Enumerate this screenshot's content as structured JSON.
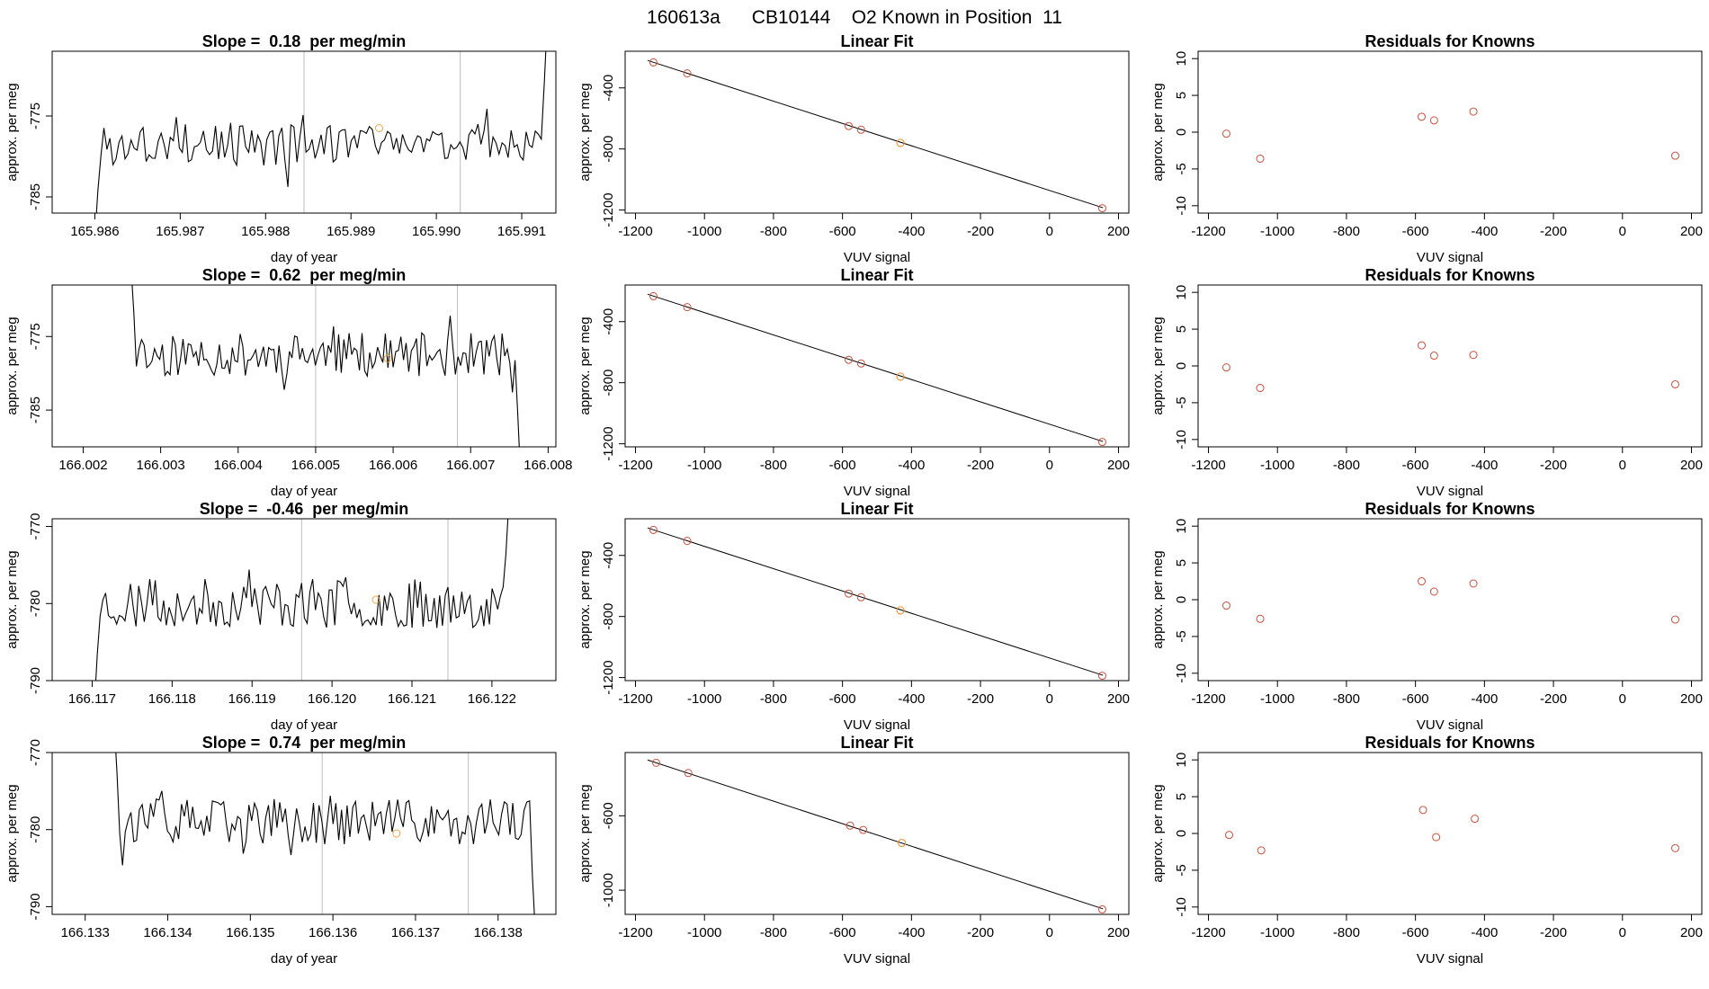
{
  "main_title": "160613a      CB10144    O2 Known in Position  11",
  "colors": {
    "line": "#000000",
    "point": "#cd4f39",
    "highlight": "#f4a442",
    "vline": "#bebebe",
    "frame": "#000000"
  },
  "chart_data": [
    {
      "type": "line",
      "title": "Slope =  0.18  per meg/min",
      "xlabel": "day of year",
      "ylabel": "approx. per meg",
      "xlim": [
        165.9855,
        165.9914
      ],
      "ylim": [
        -787,
        -767
      ],
      "x_ticks": [
        "165.986",
        "165.987",
        "165.988",
        "165.989",
        "165.990",
        "165.991"
      ],
      "y_ticks": [
        "-775",
        "-785"
      ],
      "x_start": 165.986,
      "x_end": 165.9913,
      "seed": 3,
      "base": -778.5,
      "amp": 2.7,
      "start_y": -790,
      "end_y": -763,
      "vlines": [
        165.98845,
        165.99028
      ],
      "marker": {
        "x": 165.98933,
        "y": -776.5
      }
    },
    {
      "type": "scatter",
      "title": "Linear Fit",
      "xlabel": "VUV signal",
      "ylabel": "approx. per meg",
      "xlim": [
        -1230,
        230
      ],
      "ylim": [
        -1220,
        -160
      ],
      "x_ticks": [
        -1200,
        -1000,
        -800,
        -600,
        -400,
        -200,
        0,
        200
      ],
      "y_ticks": [
        -400,
        -800,
        -1200
      ],
      "fit_line": {
        "x": [
          -1165,
          155
        ],
        "y": [
          -220,
          -1185
        ]
      },
      "points": [
        {
          "x": -1148,
          "y": -233
        },
        {
          "x": -1050,
          "y": -305
        },
        {
          "x": -582,
          "y": -650
        },
        {
          "x": -546,
          "y": -674
        },
        {
          "x": -432,
          "y": -760,
          "highlight": true
        },
        {
          "x": 153,
          "y": -1188
        }
      ]
    },
    {
      "type": "scatter",
      "title": "Residuals for Knowns",
      "xlabel": "VUV signal",
      "ylabel": "approx. per meg",
      "xlim": [
        -1230,
        230
      ],
      "ylim": [
        -11,
        11
      ],
      "x_ticks": [
        -1200,
        -1000,
        -800,
        -600,
        -400,
        -200,
        0,
        200
      ],
      "y_ticks": [
        10,
        5,
        0,
        -5,
        -10
      ],
      "points": [
        {
          "x": -1148,
          "y": -0.2
        },
        {
          "x": -1050,
          "y": -3.6
        },
        {
          "x": -582,
          "y": 2.1
        },
        {
          "x": -546,
          "y": 1.6
        },
        {
          "x": -432,
          "y": 2.8
        },
        {
          "x": 153,
          "y": -3.2
        }
      ]
    },
    {
      "type": "line",
      "title": "Slope =  0.62  per meg/min",
      "xlabel": "day of year",
      "ylabel": "approx. per meg",
      "xlim": [
        166.0016,
        166.0081
      ],
      "ylim": [
        -790,
        -768
      ],
      "x_ticks": [
        "166.002",
        "166.003",
        "166.004",
        "166.005",
        "166.006",
        "166.007",
        "166.008"
      ],
      "y_ticks": [
        "-775",
        "-785"
      ],
      "x_start": 166.00262,
      "x_end": 166.00764,
      "seed": 11,
      "base": -777.5,
      "amp": 3.0,
      "start_y": -766,
      "end_y": -793,
      "vlines": [
        166.005,
        166.00683
      ],
      "marker": {
        "x": 166.00593,
        "y": -778
      }
    },
    {
      "type": "scatter",
      "title": "Linear Fit",
      "xlabel": "VUV signal",
      "ylabel": "approx. per meg",
      "xlim": [
        -1230,
        230
      ],
      "ylim": [
        -1220,
        -160
      ],
      "x_ticks": [
        -1200,
        -1000,
        -800,
        -600,
        -400,
        -200,
        0,
        200
      ],
      "y_ticks": [
        -400,
        -800,
        -1200
      ],
      "fit_line": {
        "x": [
          -1165,
          155
        ],
        "y": [
          -220,
          -1185
        ]
      },
      "points": [
        {
          "x": -1148,
          "y": -233
        },
        {
          "x": -1050,
          "y": -305
        },
        {
          "x": -582,
          "y": -650
        },
        {
          "x": -546,
          "y": -674
        },
        {
          "x": -432,
          "y": -760,
          "highlight": true
        },
        {
          "x": 153,
          "y": -1188
        }
      ]
    },
    {
      "type": "scatter",
      "title": "Residuals for Knowns",
      "xlabel": "VUV signal",
      "ylabel": "approx. per meg",
      "xlim": [
        -1230,
        230
      ],
      "ylim": [
        -11,
        11
      ],
      "x_ticks": [
        -1200,
        -1000,
        -800,
        -600,
        -400,
        -200,
        0,
        200
      ],
      "y_ticks": [
        10,
        5,
        0,
        -5,
        -10
      ],
      "points": [
        {
          "x": -1148,
          "y": -0.2
        },
        {
          "x": -1050,
          "y": -3.0
        },
        {
          "x": -582,
          "y": 2.8
        },
        {
          "x": -546,
          "y": 1.4
        },
        {
          "x": -432,
          "y": 1.5
        },
        {
          "x": 153,
          "y": -2.5
        }
      ]
    },
    {
      "type": "line",
      "title": "Slope =  -0.46  per meg/min",
      "xlabel": "day of year",
      "ylabel": "approx. per meg",
      "xlim": [
        166.1165,
        166.1228
      ],
      "ylim": [
        -790,
        -769
      ],
      "x_ticks": [
        "166.117",
        "166.118",
        "166.119",
        "166.120",
        "166.121",
        "166.122"
      ],
      "y_ticks": [
        "-770",
        "-780",
        "-790"
      ],
      "x_start": 166.11703,
      "x_end": 166.12221,
      "seed": 23,
      "base": -780,
      "amp": 3.2,
      "start_y": -793,
      "end_y": -767,
      "vlines": [
        166.11962,
        166.12145
      ],
      "marker": {
        "x": 166.12055,
        "y": -779.5
      }
    },
    {
      "type": "scatter",
      "title": "Linear Fit",
      "xlabel": "VUV signal",
      "ylabel": "approx. per meg",
      "xlim": [
        -1230,
        230
      ],
      "ylim": [
        -1220,
        -160
      ],
      "x_ticks": [
        -1200,
        -1000,
        -800,
        -600,
        -400,
        -200,
        0,
        200
      ],
      "y_ticks": [
        -400,
        -800,
        -1200
      ],
      "fit_line": {
        "x": [
          -1165,
          155
        ],
        "y": [
          -220,
          -1185
        ]
      },
      "points": [
        {
          "x": -1148,
          "y": -233
        },
        {
          "x": -1050,
          "y": -305
        },
        {
          "x": -582,
          "y": -650
        },
        {
          "x": -546,
          "y": -674
        },
        {
          "x": -432,
          "y": -760,
          "highlight": true
        },
        {
          "x": 153,
          "y": -1188
        }
      ]
    },
    {
      "type": "scatter",
      "title": "Residuals for Knowns",
      "xlabel": "VUV signal",
      "ylabel": "approx. per meg",
      "xlim": [
        -1230,
        230
      ],
      "ylim": [
        -11,
        11
      ],
      "x_ticks": [
        -1200,
        -1000,
        -800,
        -600,
        -400,
        -200,
        0,
        200
      ],
      "y_ticks": [
        10,
        5,
        0,
        -5,
        -10
      ],
      "points": [
        {
          "x": -1148,
          "y": -0.8
        },
        {
          "x": -1050,
          "y": -2.6
        },
        {
          "x": -582,
          "y": 2.5
        },
        {
          "x": -546,
          "y": 1.1
        },
        {
          "x": -432,
          "y": 2.2
        },
        {
          "x": 153,
          "y": -2.7
        }
      ]
    },
    {
      "type": "line",
      "title": "Slope =  0.74  per meg/min",
      "xlabel": "day of year",
      "ylabel": "approx. per meg",
      "xlim": [
        166.1326,
        166.1387
      ],
      "ylim": [
        -791,
        -770
      ],
      "x_ticks": [
        "166.133",
        "166.134",
        "166.135",
        "166.136",
        "166.137",
        "166.138"
      ],
      "y_ticks": [
        "-770",
        "-780",
        "-790"
      ],
      "x_start": 166.13335,
      "x_end": 166.13845,
      "seed": 37,
      "base": -779,
      "amp": 3.0,
      "start_y": -766,
      "end_y": -793,
      "vlines": [
        166.13587,
        166.13764
      ],
      "marker": {
        "x": 166.13677,
        "y": -780.5
      }
    },
    {
      "type": "scatter",
      "title": "Linear Fit",
      "xlabel": "VUV signal",
      "ylabel": "approx. per meg",
      "xlim": [
        -1230,
        230
      ],
      "ylim": [
        -1130,
        -260
      ],
      "x_ticks": [
        -1200,
        -1000,
        -800,
        -600,
        -400,
        -200,
        0,
        200
      ],
      "y_ticks": [
        -600,
        -1000
      ],
      "fit_line": {
        "x": [
          -1165,
          155
        ],
        "y": [
          -300,
          -1100
        ]
      },
      "points": [
        {
          "x": -1140,
          "y": -315
        },
        {
          "x": -1047,
          "y": -370
        },
        {
          "x": -578,
          "y": -653
        },
        {
          "x": -540,
          "y": -676
        },
        {
          "x": -428,
          "y": -746,
          "highlight": true
        },
        {
          "x": 153,
          "y": -1103
        }
      ]
    },
    {
      "type": "scatter",
      "title": "Residuals for Knowns",
      "xlabel": "VUV signal",
      "ylabel": "approx. per meg",
      "xlim": [
        -1230,
        230
      ],
      "ylim": [
        -11,
        11
      ],
      "x_ticks": [
        -1200,
        -1000,
        -800,
        -600,
        -400,
        -200,
        0,
        200
      ],
      "y_ticks": [
        10,
        5,
        0,
        -5,
        -10
      ],
      "points": [
        {
          "x": -1140,
          "y": -0.2
        },
        {
          "x": -1047,
          "y": -2.3
        },
        {
          "x": -578,
          "y": 3.2
        },
        {
          "x": -540,
          "y": -0.5
        },
        {
          "x": -428,
          "y": 2.0
        },
        {
          "x": 153,
          "y": -2.0
        }
      ]
    }
  ]
}
